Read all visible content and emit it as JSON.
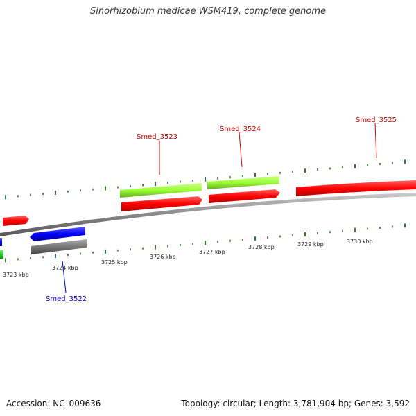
{
  "title": "Sinorhizobium medicae WSM419, complete genome",
  "footer": {
    "accession": "Accession: NC_009636",
    "summary": "Topology: circular; Length: 3,781,904 bp; Genes: 3,592"
  },
  "colors": {
    "forward_cds": "#ff0000",
    "reverse_cds": "#0000ff",
    "rna_or_pseudo": "#99ff33",
    "gray_feature": "#777777",
    "green_feature": "#33cc33",
    "axis": "#888888",
    "tick": "#2a7a2a",
    "label_forward": "#cc0000",
    "label_reverse": "#0000cc"
  },
  "axis": {
    "ticks": [
      {
        "label": "3723 kbp"
      },
      {
        "label": "3724 kbp"
      },
      {
        "label": "3725 kbp"
      },
      {
        "label": "3726 kbp"
      },
      {
        "label": "3727 kbp"
      },
      {
        "label": "3728 kbp"
      },
      {
        "label": "3729 kbp"
      },
      {
        "label": "3730 kbp"
      }
    ]
  },
  "genes": [
    {
      "name": "Smed_3522",
      "strand": "reverse"
    },
    {
      "name": "Smed_3523",
      "strand": "forward"
    },
    {
      "name": "Smed_3524",
      "strand": "forward"
    },
    {
      "name": "Smed_3525",
      "strand": "forward"
    }
  ]
}
